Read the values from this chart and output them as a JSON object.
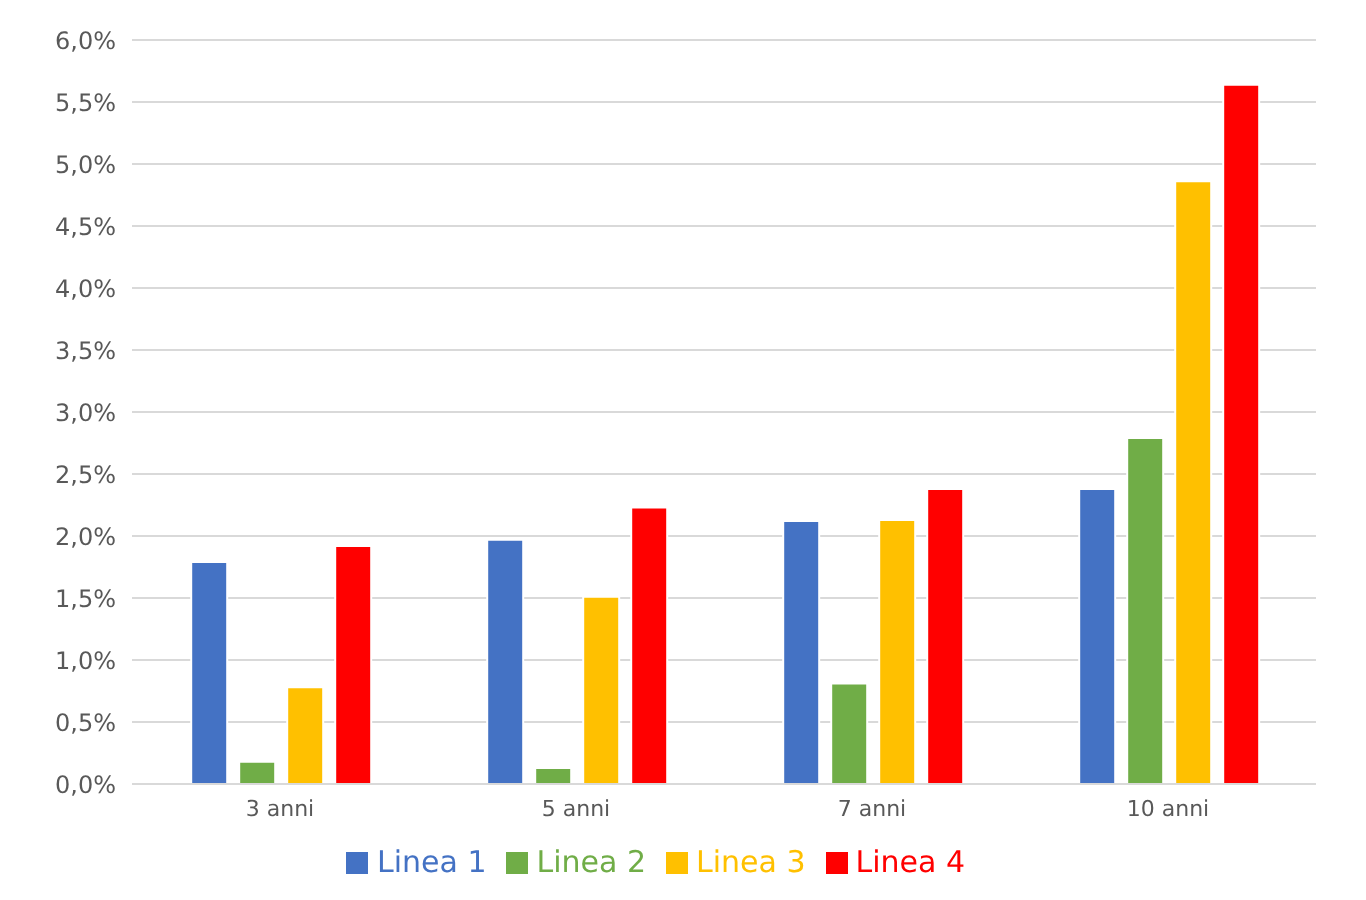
{
  "chart_data": {
    "type": "bar",
    "categories": [
      "3 anni",
      "5 anni",
      "7 anni",
      "10 anni"
    ],
    "series": [
      {
        "name": "Linea 1",
        "color": "#4472c4",
        "values": [
          1.79,
          1.97,
          2.12,
          2.38
        ]
      },
      {
        "name": "Linea 2",
        "color": "#70ad47",
        "values": [
          0.18,
          0.13,
          0.81,
          2.79
        ]
      },
      {
        "name": "Linea 3",
        "color": "#ffc000",
        "values": [
          0.78,
          1.51,
          2.13,
          4.86
        ]
      },
      {
        "name": "Linea 4",
        "color": "#ff0000",
        "values": [
          1.92,
          2.23,
          2.38,
          5.64
        ]
      }
    ],
    "ylim": [
      0,
      6
    ],
    "yticks": [
      {
        "value": 0,
        "label": "0,0%"
      },
      {
        "value": 0.5,
        "label": "0,5%"
      },
      {
        "value": 1,
        "label": "1,0%"
      },
      {
        "value": 1.5,
        "label": "1,5%"
      },
      {
        "value": 2,
        "label": "2,0%"
      },
      {
        "value": 2.5,
        "label": "2,5%"
      },
      {
        "value": 3,
        "label": "3,0%"
      },
      {
        "value": 3.5,
        "label": "3,5%"
      },
      {
        "value": 4,
        "label": "4,0%"
      },
      {
        "value": 4.5,
        "label": "4,5%"
      },
      {
        "value": 5,
        "label": "5,0%"
      },
      {
        "value": 5.5,
        "label": "5,5%"
      },
      {
        "value": 6,
        "label": "6,0%"
      }
    ],
    "grid": "y",
    "legend": "bottom"
  }
}
